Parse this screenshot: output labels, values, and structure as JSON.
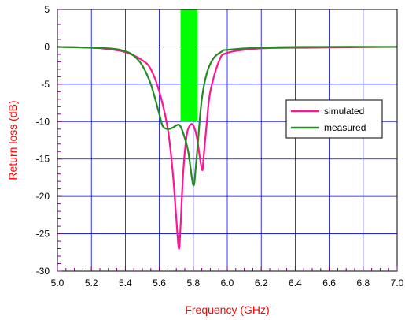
{
  "chart_data": {
    "type": "line",
    "xlabel": "Frequency (GHz)",
    "ylabel": "Return loss (dB)",
    "xlim": [
      5.0,
      7.0
    ],
    "ylim": [
      -30,
      5
    ],
    "x_ticks": [
      "5.0",
      "5.2",
      "5.4",
      "5.6",
      "5.8",
      "6.0",
      "6.2",
      "6.4",
      "6.6",
      "6.8",
      "7.0"
    ],
    "y_ticks": [
      "5",
      "0",
      "-5",
      "-10",
      "-15",
      "-20",
      "-25",
      "-30"
    ],
    "grid": true,
    "legend_position": "right",
    "band": {
      "x_start": 5.725,
      "x_end": 5.825,
      "y_top": 5,
      "y_bottom": -10,
      "color": "#00ff00"
    },
    "series": [
      {
        "name": "simulated",
        "color": "#ff1493",
        "points": [
          [
            5.0,
            0
          ],
          [
            5.2,
            -0.1
          ],
          [
            5.3,
            -0.3
          ],
          [
            5.4,
            -0.7
          ],
          [
            5.5,
            -1.8
          ],
          [
            5.55,
            -3
          ],
          [
            5.6,
            -6
          ],
          [
            5.65,
            -11
          ],
          [
            5.68,
            -17
          ],
          [
            5.7,
            -23
          ],
          [
            5.715,
            -27
          ],
          [
            5.725,
            -24
          ],
          [
            5.74,
            -17
          ],
          [
            5.76,
            -12
          ],
          [
            5.78,
            -10.5
          ],
          [
            5.8,
            -10.5
          ],
          [
            5.82,
            -12
          ],
          [
            5.84,
            -15
          ],
          [
            5.853,
            -16.5
          ],
          [
            5.86,
            -15
          ],
          [
            5.88,
            -10
          ],
          [
            5.9,
            -6
          ],
          [
            5.95,
            -2
          ],
          [
            6.0,
            -0.8
          ],
          [
            6.2,
            -0.2
          ],
          [
            6.5,
            -0.1
          ],
          [
            7.0,
            0
          ]
        ]
      },
      {
        "name": "measured",
        "color": "#228b22",
        "points": [
          [
            5.0,
            0
          ],
          [
            5.3,
            -0.2
          ],
          [
            5.4,
            -0.6
          ],
          [
            5.45,
            -1.2
          ],
          [
            5.5,
            -2.5
          ],
          [
            5.55,
            -5
          ],
          [
            5.6,
            -9
          ],
          [
            5.62,
            -10.6
          ],
          [
            5.65,
            -11
          ],
          [
            5.68,
            -10.8
          ],
          [
            5.7,
            -10.5
          ],
          [
            5.72,
            -10.5
          ],
          [
            5.74,
            -11.5
          ],
          [
            5.77,
            -14
          ],
          [
            5.8,
            -18.5
          ],
          [
            5.815,
            -16
          ],
          [
            5.83,
            -12
          ],
          [
            5.85,
            -7
          ],
          [
            5.88,
            -3.5
          ],
          [
            5.92,
            -1.5
          ],
          [
            5.97,
            -0.6
          ],
          [
            6.0,
            -0.4
          ],
          [
            6.2,
            -0.1
          ],
          [
            6.5,
            0
          ],
          [
            7.0,
            0
          ]
        ]
      }
    ]
  }
}
